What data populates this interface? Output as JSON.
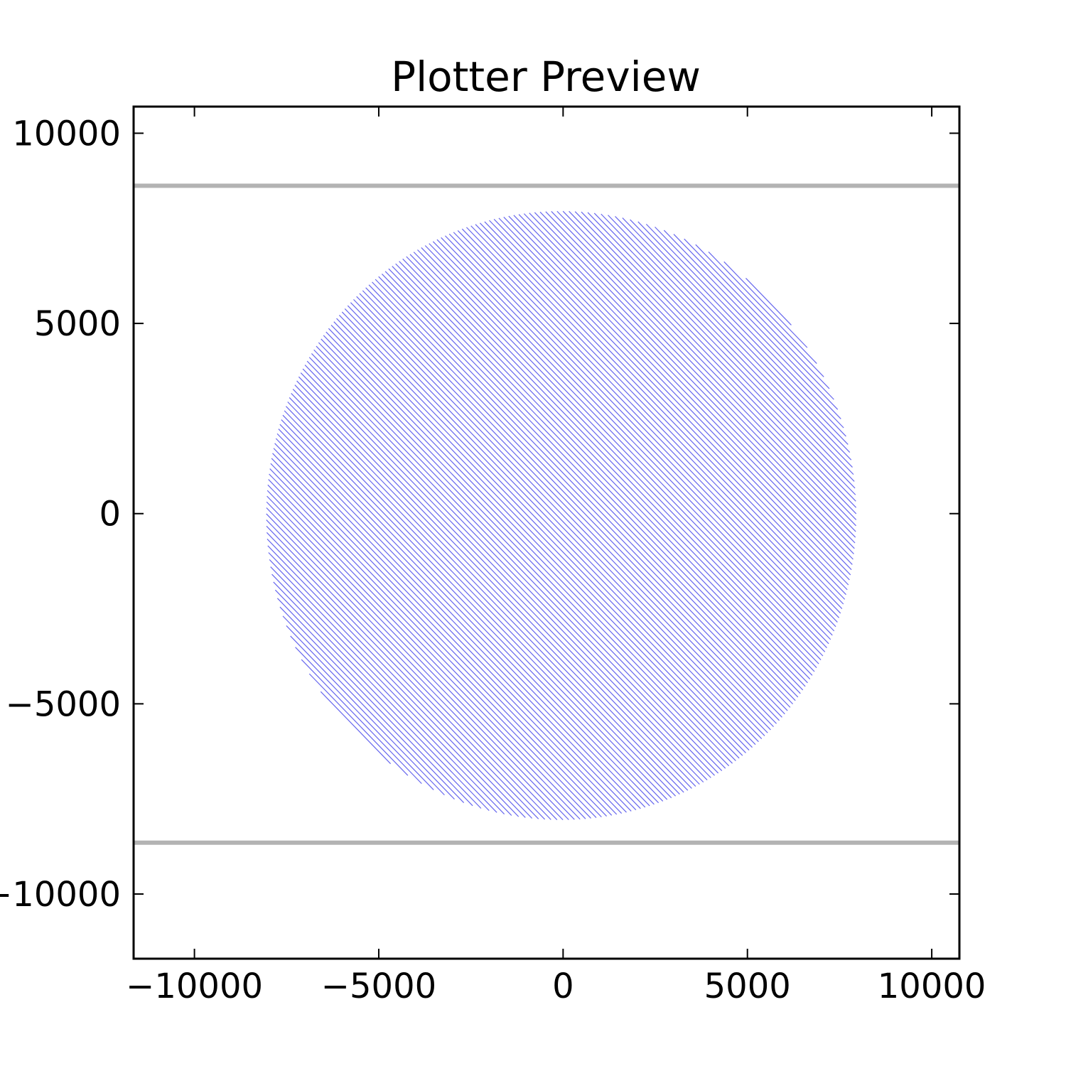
{
  "chart_data": {
    "type": "line",
    "title": "Plotter Preview",
    "xlabel": "",
    "ylabel": "",
    "xlim": [
      -11650,
      10750
    ],
    "ylim": [
      -11700,
      10700
    ],
    "x_ticks": [
      -10000,
      -5000,
      0,
      5000,
      10000
    ],
    "y_ticks": [
      -10000,
      -5000,
      0,
      5000,
      10000
    ],
    "x_tick_labels": [
      "−10000",
      "−5000",
      "0",
      "5000",
      "10000"
    ],
    "y_tick_labels": [
      "−10000",
      "−5000",
      "0",
      "5000",
      "10000"
    ],
    "grid": false,
    "boundary_lines": {
      "color": "#b3b3b3",
      "y_values": [
        8620,
        -8650
      ]
    },
    "hatch_fill": {
      "shape": "circle",
      "center": [
        -50,
        -50
      ],
      "radius": 8000,
      "hatch_angle_deg": -45,
      "hatch_spacing": 160,
      "color": "#6666ee"
    }
  }
}
